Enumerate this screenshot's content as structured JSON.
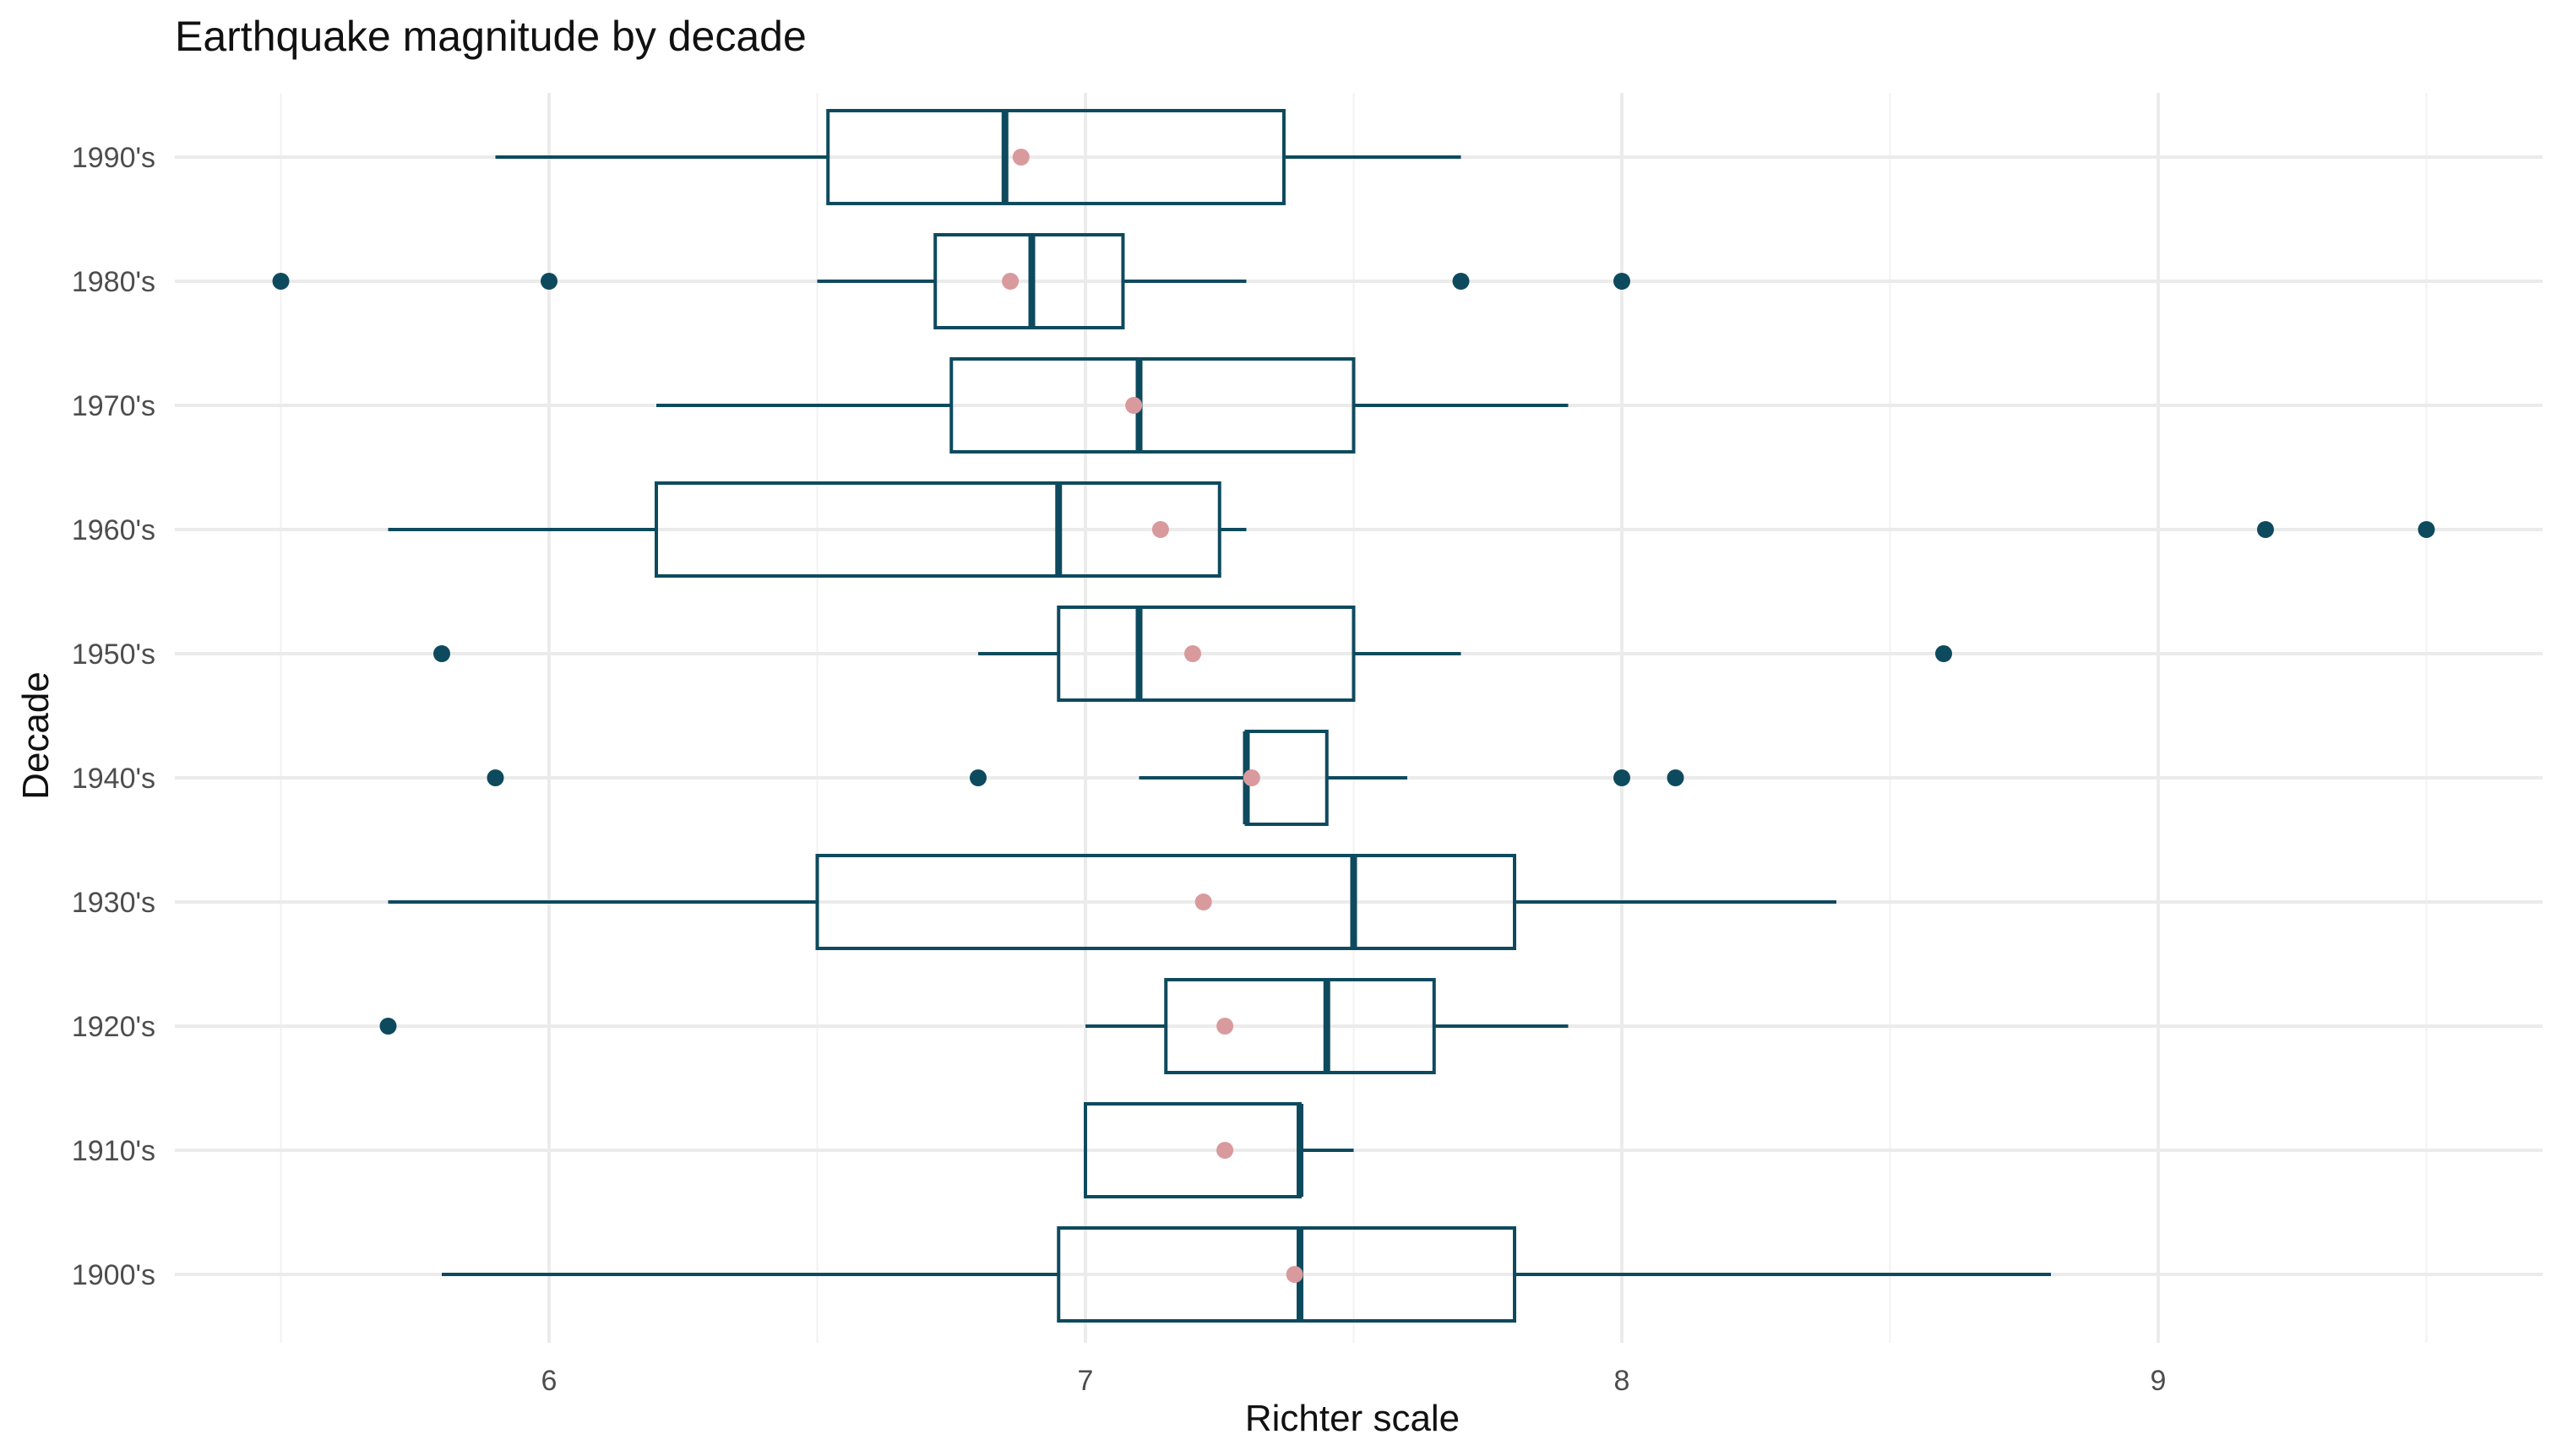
{
  "chart_data": {
    "type": "boxplot",
    "orientation": "horizontal",
    "title": "Earthquake magnitude by decade",
    "xlabel": "Richter scale",
    "ylabel": "Decade",
    "xlim": [
      5.3,
      9.65
    ],
    "x_ticks": [
      6,
      7,
      8,
      9
    ],
    "x_minor_ticks": [
      5.5,
      6.5,
      7.5,
      8.5,
      9.5
    ],
    "grid": true,
    "legend": "none",
    "colors": {
      "box": "#0e4a5e",
      "mean_point": "#d99a9d",
      "grid": "#ebebeb",
      "background": "#ffffff"
    },
    "categories": [
      "1990's",
      "1980's",
      "1970's",
      "1960's",
      "1950's",
      "1940's",
      "1930's",
      "1920's",
      "1910's",
      "1900's"
    ],
    "boxes": [
      {
        "category": "1990's",
        "whisker_low": 5.9,
        "q1": 6.52,
        "median": 6.85,
        "q3": 7.37,
        "whisker_high": 7.7,
        "mean": 6.88,
        "outliers": []
      },
      {
        "category": "1980's",
        "whisker_low": 6.5,
        "q1": 6.72,
        "median": 6.9,
        "q3": 7.07,
        "whisker_high": 7.3,
        "mean": 6.86,
        "outliers": [
          5.5,
          6.0,
          7.7,
          8.0
        ]
      },
      {
        "category": "1970's",
        "whisker_low": 6.2,
        "q1": 6.75,
        "median": 7.1,
        "q3": 7.5,
        "whisker_high": 7.9,
        "mean": 7.09,
        "outliers": []
      },
      {
        "category": "1960's",
        "whisker_low": 5.7,
        "q1": 6.2,
        "median": 6.95,
        "q3": 7.25,
        "whisker_high": 7.3,
        "mean": 7.14,
        "outliers": [
          9.2,
          9.5
        ]
      },
      {
        "category": "1950's",
        "whisker_low": 6.8,
        "q1": 6.95,
        "median": 7.1,
        "q3": 7.5,
        "whisker_high": 7.7,
        "mean": 7.2,
        "outliers": [
          5.8,
          8.6
        ]
      },
      {
        "category": "1940's",
        "whisker_low": 7.1,
        "q1": 7.3,
        "median": 7.3,
        "q3": 7.45,
        "whisker_high": 7.6,
        "mean": 7.31,
        "outliers": [
          5.9,
          6.8,
          8.0,
          8.1
        ]
      },
      {
        "category": "1930's",
        "whisker_low": 5.7,
        "q1": 6.5,
        "median": 7.5,
        "q3": 7.8,
        "whisker_high": 8.4,
        "mean": 7.22,
        "outliers": []
      },
      {
        "category": "1920's",
        "whisker_low": 7.0,
        "q1": 7.15,
        "median": 7.45,
        "q3": 7.65,
        "whisker_high": 7.9,
        "mean": 7.26,
        "outliers": [
          5.7
        ]
      },
      {
        "category": "1910's",
        "whisker_low": 7.0,
        "q1": 7.0,
        "median": 7.4,
        "q3": 7.4,
        "whisker_high": 7.5,
        "mean": 7.26,
        "outliers": []
      },
      {
        "category": "1900's",
        "whisker_low": 5.8,
        "q1": 6.95,
        "median": 7.4,
        "q3": 7.8,
        "whisker_high": 8.8,
        "mean": 7.39,
        "outliers": []
      }
    ]
  }
}
